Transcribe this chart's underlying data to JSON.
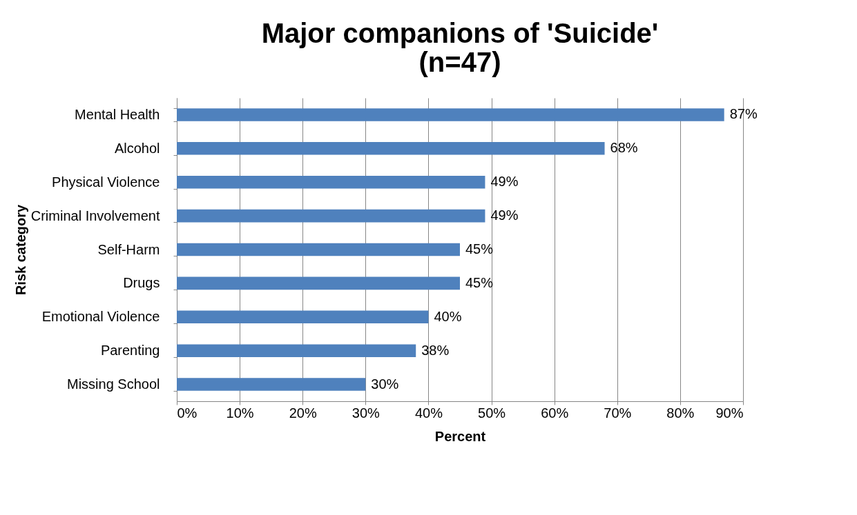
{
  "chart_data": {
    "type": "bar",
    "orientation": "horizontal",
    "title": "Major companions of 'Suicide'\n(n=47)",
    "xlabel": "Percent",
    "ylabel": "Risk category",
    "categories": [
      "Mental Health",
      "Alcohol",
      "Physical Violence",
      "Criminal Involvement",
      "Self-Harm",
      "Drugs",
      "Emotional Violence",
      "Parenting",
      "Missing School"
    ],
    "values": [
      87,
      68,
      49,
      49,
      45,
      45,
      40,
      38,
      30
    ],
    "value_labels": [
      "87%",
      "68%",
      "49%",
      "49%",
      "45%",
      "45%",
      "40%",
      "38%",
      "30%"
    ],
    "color": "#4f81bd",
    "xlim": [
      0,
      90
    ],
    "xticks": [
      {
        "value": 0,
        "label": "0%"
      },
      {
        "value": 10,
        "label": "10%"
      },
      {
        "value": 20,
        "label": "20%"
      },
      {
        "value": 30,
        "label": "30%"
      },
      {
        "value": 40,
        "label": "40%"
      },
      {
        "value": 50,
        "label": "50%"
      },
      {
        "value": 60,
        "label": "60%"
      },
      {
        "value": 70,
        "label": "70%"
      },
      {
        "value": 80,
        "label": "80%"
      },
      {
        "value": 90,
        "label": "90%"
      }
    ],
    "grid": "x"
  }
}
